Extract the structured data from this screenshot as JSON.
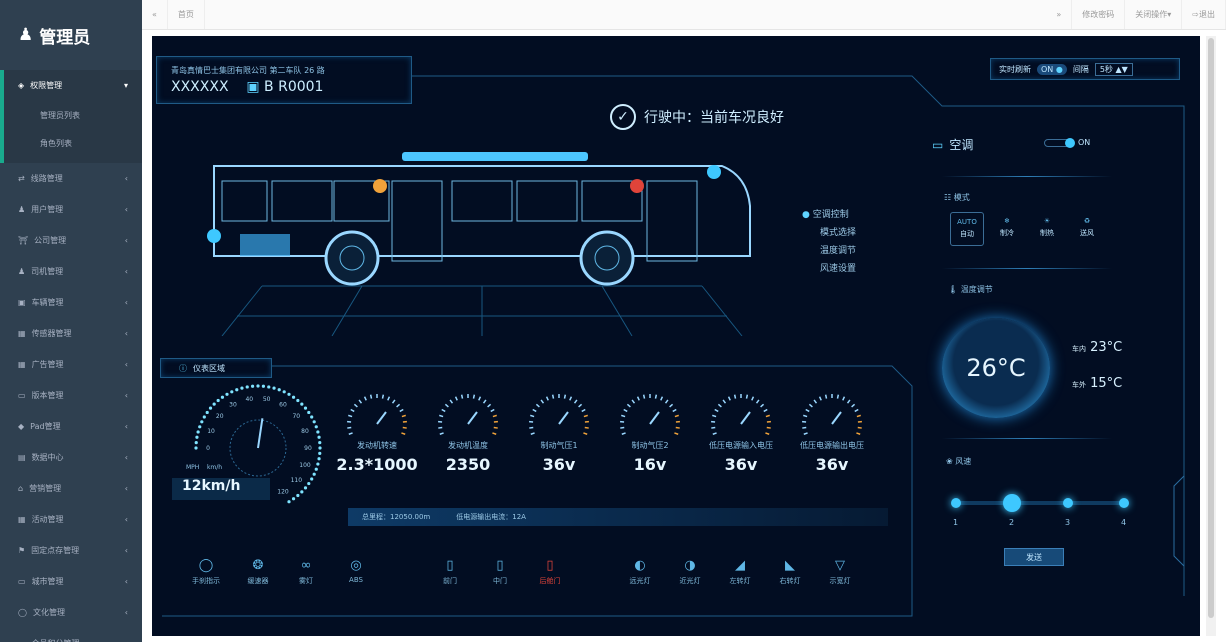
{
  "sidebar": {
    "title": "管理员",
    "open_group": {
      "label": "权限管理",
      "items": [
        "管理员列表",
        "角色列表"
      ]
    },
    "items": [
      {
        "label": "线路管理",
        "icon": "route-icon"
      },
      {
        "label": "用户管理",
        "icon": "user-icon"
      },
      {
        "label": "公司管理",
        "icon": "bank-icon"
      },
      {
        "label": "司机管理",
        "icon": "driver-icon"
      },
      {
        "label": "车辆管理",
        "icon": "bus-icon"
      },
      {
        "label": "传感器管理",
        "icon": "sensor-icon"
      },
      {
        "label": "广告管理",
        "icon": "ad-icon"
      },
      {
        "label": "版本管理",
        "icon": "monitor-icon"
      },
      {
        "label": "Pad管理",
        "icon": "pad-icon"
      },
      {
        "label": "数据中心",
        "icon": "chart-icon"
      },
      {
        "label": "营销管理",
        "icon": "home-icon"
      },
      {
        "label": "活动管理",
        "icon": "grid-icon"
      },
      {
        "label": "固定点存管理",
        "icon": "flag-icon"
      },
      {
        "label": "城市管理",
        "icon": "monitor-icon"
      },
      {
        "label": "文化管理",
        "icon": "comment-icon"
      },
      {
        "label": "会员积分管理",
        "icon": "card-icon"
      }
    ]
  },
  "topbar": {
    "home_tab": "首页",
    "change_password": "修改密码",
    "close_ops": "关闭操作",
    "logout": "退出"
  },
  "dashboard": {
    "company": "青岛真情巴士集团有限公司  第二车队  26 路",
    "vehicle_id": "XXXXXX",
    "plate": "B R0001",
    "refresh_label": "实时刷新",
    "refresh_state": "ON",
    "interval_label": "间隔",
    "interval_value": "5秒",
    "status": "行驶中：当前车况良好",
    "menu": [
      "空调控制",
      "模式选择",
      "温度调节",
      "风速设置"
    ],
    "instrument_title": "仪表区域",
    "speed": {
      "value": "12km/h",
      "units": [
        "MPH",
        "km/h"
      ],
      "ticks": [
        "0",
        "10",
        "20",
        "30",
        "40",
        "50",
        "60",
        "70",
        "80",
        "90",
        "100",
        "110",
        "120"
      ],
      "current": 12
    },
    "gauges": [
      {
        "label": "发动机转速",
        "value": "2.3*1000"
      },
      {
        "label": "发动机温度",
        "value": "2350"
      },
      {
        "label": "制动气压1",
        "value": "36v"
      },
      {
        "label": "制动气压2",
        "value": "16v"
      },
      {
        "label": "低压电源输入电压",
        "value": "36v"
      },
      {
        "label": "低压电源输出电压",
        "value": "36v"
      }
    ],
    "mileage": "总里程：12050.00m",
    "current": "低电源输出电流：12A",
    "indicators": [
      {
        "label": "手刹指示",
        "icon": "handbrake-icon"
      },
      {
        "label": "缓速器",
        "icon": "retarder-icon"
      },
      {
        "label": "雾灯",
        "icon": "fog-light-icon"
      },
      {
        "label": "ABS",
        "icon": "abs-icon"
      },
      {
        "label": "前门",
        "icon": "door-icon"
      },
      {
        "label": "中门",
        "icon": "door-icon"
      },
      {
        "label": "后舱门",
        "icon": "door-icon",
        "alert": true
      },
      {
        "label": "远光灯",
        "icon": "high-beam-icon"
      },
      {
        "label": "近光灯",
        "icon": "low-beam-icon"
      },
      {
        "label": "左转灯",
        "icon": "left-turn-icon"
      },
      {
        "label": "右转灯",
        "icon": "right-turn-icon"
      },
      {
        "label": "示宽灯",
        "icon": "clearance-light-icon"
      }
    ],
    "ac": {
      "title": "空调",
      "state": "ON",
      "mode_title": "模式",
      "modes": [
        {
          "label": "自动",
          "sub": "AUTO"
        },
        {
          "label": "制冷"
        },
        {
          "label": "制热"
        },
        {
          "label": "送风"
        }
      ],
      "temp_title": "温度调节",
      "set_temp": "26°C",
      "inside_label": "车内",
      "inside": "23°C",
      "outside_label": "车外",
      "outside": "15°C",
      "fan_title": "风速",
      "fan_levels": [
        "1",
        "2",
        "3",
        "4"
      ],
      "fan_selected": 2,
      "send": "发送"
    },
    "colors": {
      "accent": "#3ec8ff",
      "alert": "#e0443a",
      "bg": "#020d22"
    }
  }
}
